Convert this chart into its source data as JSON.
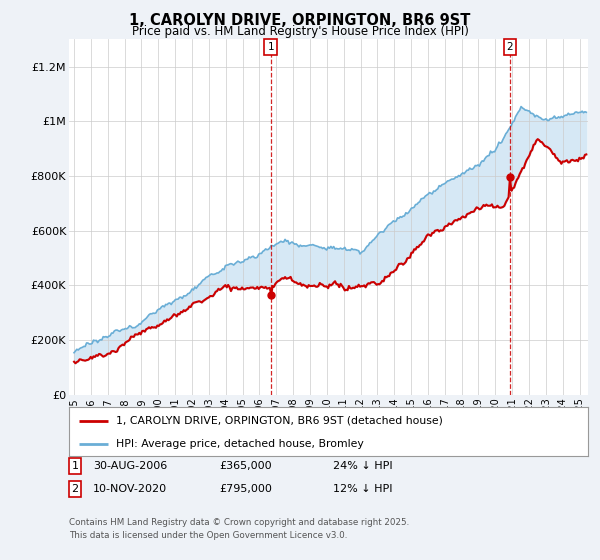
{
  "title": "1, CAROLYN DRIVE, ORPINGTON, BR6 9ST",
  "subtitle": "Price paid vs. HM Land Registry's House Price Index (HPI)",
  "ylabel_ticks": [
    "£0",
    "£200K",
    "£400K",
    "£600K",
    "£800K",
    "£1M",
    "£1.2M"
  ],
  "ytick_values": [
    0,
    200000,
    400000,
    600000,
    800000,
    1000000,
    1200000
  ],
  "ylim": [
    0,
    1300000
  ],
  "xlim_start": 1994.7,
  "xlim_end": 2025.5,
  "hpi_color": "#6aaed6",
  "hpi_fill_color": "#d6e8f5",
  "price_color": "#cc0000",
  "marker_color": "#cc0000",
  "vline_color": "#cc0000",
  "grid_color": "#cccccc",
  "background_color": "#eef2f7",
  "plot_bg": "#ffffff",
  "legend_label_price": "1, CAROLYN DRIVE, ORPINGTON, BR6 9ST (detached house)",
  "legend_label_hpi": "HPI: Average price, detached house, Bromley",
  "sale1_date": 2006.67,
  "sale1_price": 365000,
  "sale2_date": 2020.87,
  "sale2_price": 795000,
  "copyright": "Contains HM Land Registry data © Crown copyright and database right 2025.\nThis data is licensed under the Open Government Licence v3.0."
}
